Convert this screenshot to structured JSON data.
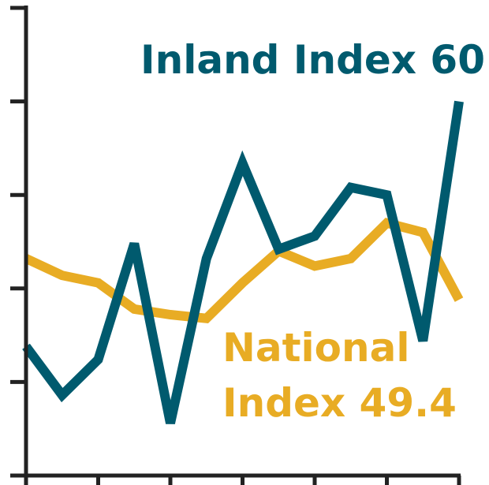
{
  "chart_data": {
    "type": "line",
    "categories": [
      null,
      null,
      null,
      null,
      null,
      null,
      null,
      null,
      null,
      null,
      null,
      null,
      null
    ],
    "series": [
      {
        "color": "#005a6e",
        "values": [
          46.9,
          44.3,
          46.2,
          52.4,
          42.8,
          51.6,
          56.7,
          52.1,
          52.8,
          55.4,
          55.0,
          47.2,
          60
        ]
      },
      {
        "color": "#e8ac24",
        "values": [
          51.6,
          50.7,
          50.3,
          48.9,
          48.6,
          48.4,
          50.3,
          52.0,
          51.2,
          51.6,
          53.5,
          53.0,
          49.4
        ]
      }
    ],
    "annotations": [
      "Inland Index 60",
      "National",
      "Index 49.4"
    ],
    "ylim": [
      40,
      65
    ],
    "yticks": [
      40,
      45,
      50,
      55,
      60,
      65
    ]
  }
}
